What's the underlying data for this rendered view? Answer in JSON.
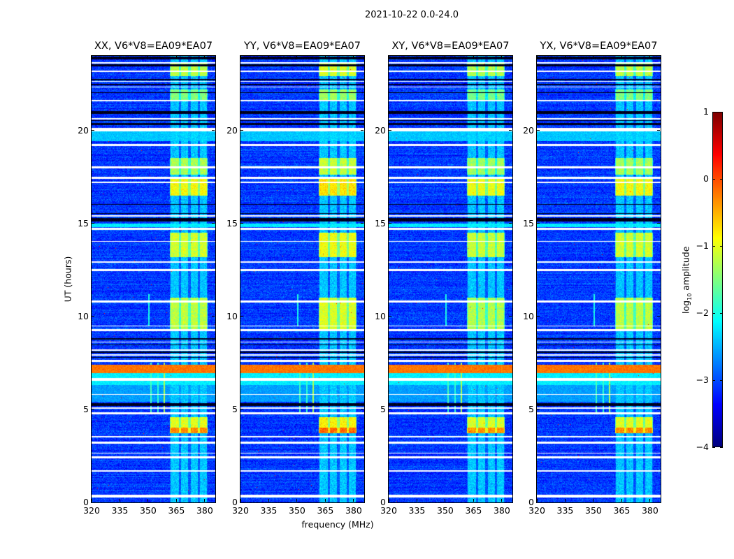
{
  "suptitle": "2021-10-22 0.0-24.0",
  "chart_data": {
    "type": "heatmap",
    "title": "2021-10-22 0.0-24.0",
    "xlabel": "frequency (MHz)",
    "ylabel": "UT (hours)",
    "xlim": [
      320,
      385.6
    ],
    "ylim": [
      0,
      24
    ],
    "xticks": [
      320,
      335,
      350,
      365,
      380
    ],
    "yticks": [
      0,
      5,
      10,
      15,
      20
    ],
    "colormap": "jet",
    "colorbar": {
      "label_prefix": "log",
      "label_sub": "10",
      "label_suffix": " amplitude",
      "range": [
        -4,
        1
      ],
      "ticks": [
        1,
        0,
        -1,
        -2,
        -3,
        -4
      ],
      "tick_labels": [
        "1",
        "0",
        "−1",
        "−2",
        "−3",
        "−4"
      ]
    },
    "panels": [
      {
        "title": "XX, V6*V8=EA09*EA07",
        "seed": 11,
        "rfi_boost": 0.0
      },
      {
        "title": "YY, V6*V8=EA09*EA07",
        "seed": 23,
        "rfi_boost": 0.15
      },
      {
        "title": "XY, V6*V8=EA09*EA07",
        "seed": 37,
        "rfi_boost": -0.05
      },
      {
        "title": "YX, V6*V8=EA09*EA07",
        "seed": 41,
        "rfi_boost": 0.0
      }
    ],
    "background_log10_amplitude": -3.1,
    "rfi_band_mhz": [
      361.5,
      381.5
    ],
    "rfi_subbands_mhz": [
      [
        362,
        366.3
      ],
      [
        367.3,
        371.3
      ],
      [
        372.5,
        376.2
      ],
      [
        377.3,
        381
      ]
    ],
    "rfi_band_baseline": -2.4,
    "rfi_active_periods_hours": [
      {
        "t": [
          3.7,
          4.0
        ],
        "level": -0.3
      },
      {
        "t": [
          4.0,
          4.6
        ],
        "level": -1.0
      },
      {
        "t": [
          9.2,
          11.0
        ],
        "level": -1.2
      },
      {
        "t": [
          13.2,
          14.5
        ],
        "level": -1.1
      },
      {
        "t": [
          16.5,
          17.4
        ],
        "level": -0.9
      },
      {
        "t": [
          17.6,
          18.5
        ],
        "level": -1.3
      },
      {
        "t": [
          21.6,
          22.2
        ],
        "level": -1.5
      },
      {
        "t": [
          22.9,
          23.6
        ],
        "level": -1.2
      }
    ],
    "broadband_periods_hours": [
      {
        "t": [
          6.95,
          7.4
        ],
        "level": -0.2
      },
      {
        "t": [
          6.3,
          6.95
        ],
        "level": -2.2
      },
      {
        "t": [
          5.4,
          6.3
        ],
        "level": -2.6
      },
      {
        "t": [
          19.4,
          19.95
        ],
        "level": -2.4
      },
      {
        "t": [
          14.8,
          15.0
        ],
        "level": -2.2
      }
    ],
    "narrowband_lines": [
      {
        "f": 351.5,
        "t": [
          4.8,
          7.5
        ],
        "level": -1.8
      },
      {
        "f": 355.2,
        "t": [
          4.8,
          7.5
        ],
        "level": -1.9
      },
      {
        "f": 358.6,
        "t": [
          4.8,
          7.5
        ],
        "level": -1.3
      },
      {
        "f": 350.5,
        "t": [
          9.5,
          11.2
        ],
        "level": -2.0
      }
    ],
    "flagged_rows_hours": [
      [
        0.25,
        0.4
      ],
      [
        1.65,
        1.72
      ],
      [
        2.35,
        2.48
      ],
      [
        2.62,
        2.68
      ],
      [
        3.15,
        3.25
      ],
      [
        3.48,
        3.55
      ],
      [
        4.75,
        4.85
      ],
      [
        5.05,
        5.12
      ],
      [
        5.8,
        5.84
      ],
      [
        6.55,
        6.68
      ],
      [
        7.55,
        7.65
      ],
      [
        7.9,
        7.95
      ],
      [
        8.15,
        8.22
      ],
      [
        8.6,
        8.65
      ],
      [
        9.2,
        9.3
      ],
      [
        9.45,
        9.5
      ],
      [
        10.75,
        10.85
      ],
      [
        12.45,
        12.55
      ],
      [
        12.9,
        12.95
      ],
      [
        14.0,
        14.05
      ],
      [
        14.65,
        14.75
      ],
      [
        15.35,
        15.42
      ],
      [
        17.15,
        17.25
      ],
      [
        17.4,
        17.5
      ],
      [
        17.95,
        18.05
      ],
      [
        19.15,
        19.25
      ],
      [
        19.95,
        20.12
      ],
      [
        20.6,
        20.65
      ],
      [
        21.55,
        21.62
      ],
      [
        22.3,
        22.35
      ],
      [
        22.6,
        22.65
      ],
      [
        23.15,
        23.22
      ],
      [
        23.6,
        23.65
      ]
    ],
    "dark_rows_hours": [
      [
        5.18,
        5.32
      ],
      [
        7.78,
        7.83
      ],
      [
        8.05,
        8.1
      ],
      [
        8.45,
        8.5
      ],
      [
        8.75,
        8.82
      ],
      [
        15.1,
        15.3
      ],
      [
        15.5,
        15.55
      ],
      [
        16.0,
        16.05
      ],
      [
        20.3,
        20.4
      ],
      [
        20.5,
        20.56
      ],
      [
        20.9,
        21.05
      ],
      [
        22.0,
        22.05
      ],
      [
        22.42,
        22.5
      ],
      [
        22.7,
        22.75
      ],
      [
        23.45,
        23.55
      ],
      [
        23.8,
        23.95
      ]
    ]
  }
}
